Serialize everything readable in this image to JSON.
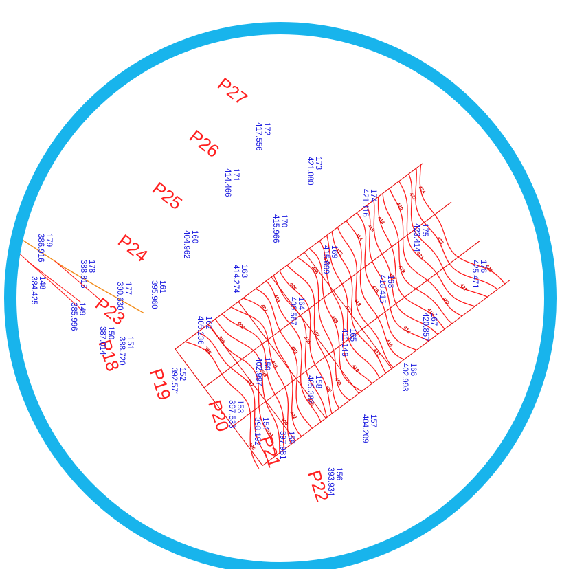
{
  "colors": {
    "frame": "#18b4ec",
    "grid": "#e81010",
    "contour": "#ff1a1a",
    "point_text": "#1a1adf",
    "profile_text": "#ff2020",
    "orange_line": "#f28c1a"
  },
  "profiles": [
    "P18",
    "P19",
    "P20",
    "P21",
    "P22",
    "P24",
    "P25",
    "P26",
    "P27",
    "P23"
  ],
  "points": [
    {
      "id": "179",
      "elev": "386.916"
    },
    {
      "id": "148",
      "elev": "384.425"
    },
    {
      "id": "178",
      "elev": "388.815"
    },
    {
      "id": "149",
      "elev": "385.996"
    },
    {
      "id": "177",
      "elev": "390.630"
    },
    {
      "id": "150",
      "elev": "387.014"
    },
    {
      "id": "151",
      "elev": "388.720"
    },
    {
      "id": "161",
      "elev": "395.960"
    },
    {
      "id": "152",
      "elev": "392.571"
    },
    {
      "id": "160",
      "elev": "404.962"
    },
    {
      "id": "153",
      "elev": "397.533"
    },
    {
      "id": "154",
      "elev": "398.192"
    },
    {
      "id": "155",
      "elev": "397.981"
    },
    {
      "id": "156",
      "elev": "393.934"
    },
    {
      "id": "157",
      "elev": "404.209"
    },
    {
      "id": "158",
      "elev": "405.382"
    },
    {
      "id": "159",
      "elev": "402.997"
    },
    {
      "id": "162",
      "elev": "405.236"
    },
    {
      "id": "163",
      "elev": "414.274"
    },
    {
      "id": "164",
      "elev": "409.567"
    },
    {
      "id": "165",
      "elev": "411.146"
    },
    {
      "id": "166",
      "elev": "402.993"
    },
    {
      "id": "167",
      "elev": "420.857"
    },
    {
      "id": "168",
      "elev": "418.415"
    },
    {
      "id": "169",
      "elev": "415.699"
    },
    {
      "id": "170",
      "elev": "415.966"
    },
    {
      "id": "171",
      "elev": "414.466"
    },
    {
      "id": "172",
      "elev": "417.556"
    },
    {
      "id": "173",
      "elev": "421.080"
    },
    {
      "id": "174",
      "elev": "421.116"
    },
    {
      "id": "175",
      "elev": "423.414"
    },
    {
      "id": "176",
      "elev": "425.471"
    }
  ],
  "contour_values": [
    "396",
    "397",
    "398",
    "399",
    "400",
    "401",
    "402",
    "403",
    "404",
    "405",
    "406",
    "407",
    "408",
    "409",
    "410",
    "411",
    "412",
    "413",
    "414",
    "415",
    "416",
    "417",
    "418",
    "419",
    "420",
    "421",
    "422",
    "423",
    "424"
  ]
}
